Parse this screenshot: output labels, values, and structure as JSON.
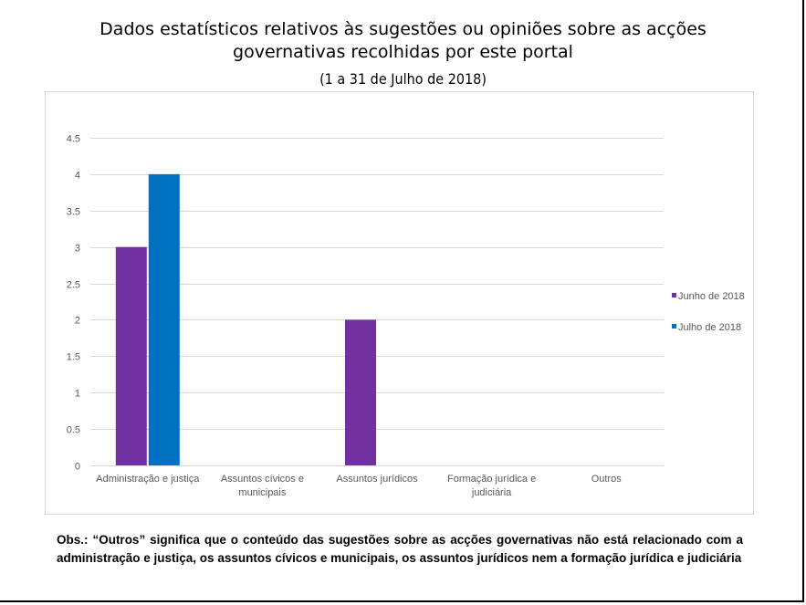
{
  "title": "Dados estatísticos relativos às sugestões ou opiniões sobre as acções governativas recolhidas por este portal",
  "subtitle": "(1 a 31 de Julho de 2018)",
  "note": "Obs.: “Outros” significa que o conteúdo das sugestões sobre as acções governativas não está relacionado com a administração e justiça, os assuntos cívicos e municipais, os assuntos jurídicos nem a formação jurídica e judiciária",
  "chart_data": {
    "type": "bar",
    "title": "Dados estatísticos relativos às sugestões ou opiniões sobre as acções governativas recolhidas por este portal",
    "subtitle": "(1 a 31 de Julho de 2018)",
    "categories": [
      [
        "Administração e justiça"
      ],
      [
        "Assuntos cívicos e",
        "municipais"
      ],
      [
        "Assuntos jurídicos"
      ],
      [
        "Formação jurídica e",
        "judiciária"
      ],
      [
        "Outros"
      ]
    ],
    "series": [
      {
        "name": "Junho de 2018",
        "color": "#7030a0",
        "values": [
          3,
          0,
          2,
          0,
          0
        ]
      },
      {
        "name": "Julho de 2018",
        "color": "#0070c0",
        "values": [
          4,
          0,
          0,
          0,
          0
        ]
      }
    ],
    "yticks": [
      "0",
      "0.5",
      "1",
      "1.5",
      "2",
      "2.5",
      "3",
      "3.5",
      "4",
      "4.5"
    ],
    "ylim": [
      0,
      4.5
    ],
    "xlabel": "",
    "ylabel": "",
    "grid": true,
    "legend_position": "right"
  }
}
